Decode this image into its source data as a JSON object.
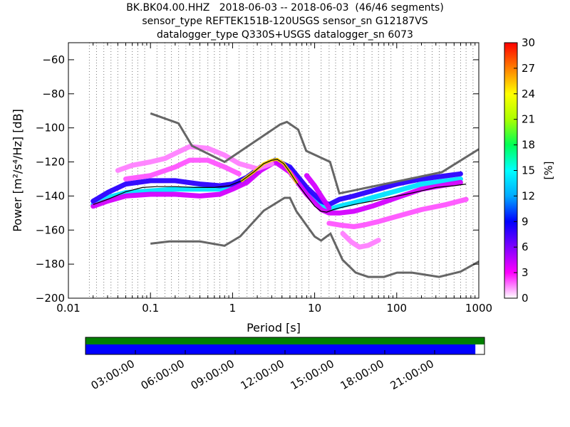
{
  "title": {
    "line1": "BK.BK04.00.HHZ   2018-06-03 -- 2018-06-03  (46/46 segments)",
    "line2": "sensor_type REFTEK151B-120USGS sensor_sn G12187VS",
    "line3": "datalogger_type Q330S+USGS datalogger_sn 6073"
  },
  "colors": {
    "nlnm_nhnm": "#666666",
    "mode_line": "#000000",
    "coverage_top": "#008000",
    "coverage_bottom": "#0000ff"
  },
  "chart_data": [
    {
      "type": "heatmap",
      "title": "BK.BK04.00.HHZ   2018-06-03 -- 2018-06-03  (46/46 segments)",
      "xlabel": "Period [s]",
      "ylabel": "Power [m²/s⁴/Hz] [dB]",
      "x_scale": "log",
      "xlim": [
        0.01,
        1000
      ],
      "ylim": [
        -200,
        -50
      ],
      "x_ticks": [
        0.01,
        0.1,
        1,
        10,
        100,
        1000
      ],
      "x_tick_labels": [
        "0.01",
        "0.1",
        "1",
        "10",
        "100",
        "1000"
      ],
      "y_ticks": [
        -200,
        -180,
        -160,
        -140,
        -120,
        -100,
        -80,
        -60
      ],
      "y_tick_labels": [
        "−200",
        "−180",
        "−160",
        "−140",
        "−120",
        "−100",
        "−80",
        "−60"
      ],
      "grid": "dotted vertical at period bins",
      "colorbar": {
        "label": "[%]",
        "range": [
          0,
          30
        ],
        "ticks": [
          0,
          3,
          6,
          9,
          12,
          15,
          18,
          21,
          24,
          27,
          30
        ],
        "tick_labels": [
          "0",
          "3",
          "6",
          "9",
          "12",
          "15",
          "18",
          "21",
          "24",
          "27",
          "30"
        ],
        "colormap": "pqlx"
      },
      "noise_models": {
        "nhnm": {
          "periods": [
            0.1,
            0.22,
            0.32,
            0.8,
            3.8,
            4.6,
            6.3,
            7.9,
            15.4,
            20,
            354.8,
            1000
          ],
          "db": [
            -91.5,
            -97.4,
            -110.5,
            -120,
            -98,
            -96.5,
            -101,
            -113.5,
            -120,
            -138.5,
            -126,
            -112.5
          ]
        },
        "nlnm": {
          "periods": [
            0.1,
            0.17,
            0.4,
            0.8,
            1.24,
            2.4,
            4.3,
            5,
            6,
            10,
            12,
            15.6,
            21.9,
            31.6,
            45,
            70,
            101,
            154,
            328,
            600,
            1000
          ],
          "db": [
            -168,
            -166.7,
            -166.7,
            -169.2,
            -163.7,
            -148.6,
            -141.1,
            -141.1,
            -149,
            -163.8,
            -166.2,
            -162.1,
            -177.5,
            -185,
            -187.5,
            -187.5,
            -185,
            -185,
            -187.5,
            -184.4,
            -178.5
          ]
        }
      },
      "mode": {
        "periods": [
          0.02,
          0.03,
          0.05,
          0.08,
          0.12,
          0.2,
          0.35,
          0.6,
          0.9,
          1.3,
          1.8,
          2.4,
          3,
          3.5,
          4.2,
          5,
          6,
          8,
          10,
          12,
          14,
          17,
          20,
          30,
          50,
          80,
          130,
          200,
          300,
          500,
          700
        ],
        "db": [
          -145,
          -142,
          -137.5,
          -135,
          -134.5,
          -134.5,
          -135,
          -135,
          -134,
          -131,
          -126,
          -121,
          -119,
          -118.5,
          -121,
          -126,
          -132,
          -140,
          -146,
          -149,
          -149.5,
          -148,
          -147,
          -145,
          -143,
          -141,
          -139,
          -137,
          -135,
          -134,
          -133
        ]
      },
      "bands": [
        {
          "periods": [
            0.02,
            0.03,
            0.05,
            0.1,
            0.2,
            0.4,
            0.7,
            1,
            1.5,
            2.2,
            3.3,
            5,
            8,
            12,
            15,
            20,
            30,
            50,
            100,
            200,
            600
          ],
          "db": [
            -145,
            -141,
            -138,
            -137,
            -136,
            -136,
            -136,
            -135,
            -131,
            -124,
            -119,
            -124,
            -137,
            -145,
            -148,
            -146,
            -144,
            -141,
            -137,
            -133,
            -130
          ],
          "percent": 14
        },
        {
          "periods": [
            0.02,
            0.03,
            0.05,
            0.1,
            0.2,
            0.4,
            0.7,
            1,
            1.5,
            2.2,
            3.3,
            5,
            8,
            12,
            15,
            20,
            30,
            50,
            100,
            200,
            600
          ],
          "db": [
            -143,
            -138,
            -133,
            -131,
            -131,
            -133,
            -134,
            -133,
            -129,
            -123,
            -119,
            -123,
            -135,
            -143,
            -145,
            -142,
            -140,
            -137,
            -133,
            -130,
            -127
          ],
          "percent": 8
        },
        {
          "periods": [
            0.02,
            0.03,
            0.05,
            0.1,
            0.2,
            0.4,
            0.7,
            1,
            1.5,
            2.2,
            3.3,
            5,
            8,
            12,
            15,
            20,
            30,
            50,
            100,
            200,
            600
          ],
          "db": [
            -146,
            -143,
            -140,
            -139,
            -139,
            -140,
            -139,
            -136,
            -132,
            -125,
            -120,
            -126,
            -139,
            -148,
            -150,
            -150,
            -149,
            -146,
            -141,
            -136,
            -132
          ],
          "percent": 4
        },
        {
          "periods": [
            0.04,
            0.06,
            0.1,
            0.15,
            0.2,
            0.3,
            0.5,
            0.8,
            1.2,
            2,
            3
          ],
          "db": [
            -125,
            -122,
            -120,
            -118,
            -115,
            -111,
            -112,
            -116,
            -121,
            -124,
            -121
          ],
          "percent": 1.5
        },
        {
          "periods": [
            0.05,
            0.1,
            0.2,
            0.3,
            0.5,
            0.8,
            1.2
          ],
          "db": [
            -130,
            -128,
            -123,
            -119,
            -119,
            -123,
            -127
          ],
          "percent": 2
        },
        {
          "periods": [
            15,
            20,
            30,
            40,
            60,
            100,
            200,
            400,
            700
          ],
          "db": [
            -156,
            -157,
            -158,
            -157,
            -155,
            -152,
            -148,
            -145,
            -142
          ],
          "percent": 2
        },
        {
          "periods": [
            22,
            28,
            35,
            45,
            60
          ],
          "db": [
            -162,
            -167,
            -170,
            -169,
            -166
          ],
          "percent": 1.5
        },
        {
          "periods": [
            8,
            10,
            12,
            15
          ],
          "db": [
            -128,
            -134,
            -140,
            -147
          ],
          "percent": 4
        }
      ]
    },
    {
      "type": "timeline",
      "x_ticks": [
        "03:00:00",
        "06:00:00",
        "09:00:00",
        "12:00:00",
        "15:00:00",
        "18:00:00",
        "21:00:00"
      ],
      "x_range_hours": [
        0,
        24
      ],
      "rows": [
        {
          "name": "data_available",
          "color": "#008000",
          "start_h": 0,
          "end_h": 24
        },
        {
          "name": "psd_segments",
          "color": "#0000ff",
          "start_h": 0,
          "end_h": 23.45
        }
      ]
    }
  ]
}
